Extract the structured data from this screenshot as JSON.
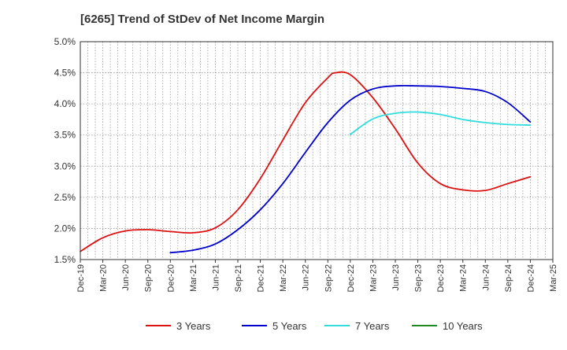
{
  "chart_data": {
    "type": "line",
    "title": "[6265]  Trend of StDev of Net Income Margin",
    "xlabel": "",
    "ylabel": "",
    "ylim": [
      1.5,
      5.0
    ],
    "y_ticks": [
      "1.5%",
      "2.0%",
      "2.5%",
      "3.0%",
      "3.5%",
      "4.0%",
      "4.5%",
      "5.0%"
    ],
    "y_tick_values": [
      1.5,
      2.0,
      2.5,
      3.0,
      3.5,
      4.0,
      4.5,
      5.0
    ],
    "x_ticks": [
      "Dec-19",
      "Mar-20",
      "Jun-20",
      "Sep-20",
      "Dec-20",
      "Mar-21",
      "Jun-21",
      "Sep-21",
      "Dec-21",
      "Mar-22",
      "Jun-22",
      "Sep-22",
      "Dec-22",
      "Mar-23",
      "Jun-23",
      "Sep-23",
      "Dec-23",
      "Mar-24",
      "Jun-24",
      "Sep-24",
      "Dec-24",
      "Mar-25"
    ],
    "grid": true,
    "legend_position": "bottom",
    "series": [
      {
        "name": "3 Years",
        "color": "#dd1111",
        "points": [
          [
            "Dec-19",
            1.63
          ],
          [
            "Mar-20",
            1.85
          ],
          [
            "Jun-20",
            1.96
          ],
          [
            "Sep-20",
            1.98
          ],
          [
            "Dec-20",
            1.95
          ],
          [
            "Mar-21",
            1.93
          ],
          [
            "Jun-21",
            2.01
          ],
          [
            "Sep-21",
            2.3
          ],
          [
            "Dec-21",
            2.8
          ],
          [
            "Mar-22",
            3.42
          ],
          [
            "Jun-22",
            4.02
          ],
          [
            "Sep-22",
            4.42
          ],
          [
            "Oct-22",
            4.5
          ],
          [
            "Dec-22",
            4.47
          ],
          [
            "Mar-23",
            4.1
          ],
          [
            "Jun-23",
            3.6
          ],
          [
            "Sep-23",
            3.05
          ],
          [
            "Dec-23",
            2.72
          ],
          [
            "Mar-24",
            2.62
          ],
          [
            "Jun-24",
            2.61
          ],
          [
            "Sep-24",
            2.72
          ],
          [
            "Dec-24",
            2.83
          ]
        ]
      },
      {
        "name": "5 Years",
        "color": "#0000cc",
        "points": [
          [
            "Dec-20",
            1.61
          ],
          [
            "Mar-21",
            1.65
          ],
          [
            "Jun-21",
            1.75
          ],
          [
            "Sep-21",
            1.98
          ],
          [
            "Dec-21",
            2.3
          ],
          [
            "Mar-22",
            2.72
          ],
          [
            "Jun-22",
            3.22
          ],
          [
            "Sep-22",
            3.7
          ],
          [
            "Dec-22",
            4.06
          ],
          [
            "Mar-23",
            4.24
          ],
          [
            "Jun-23",
            4.29
          ],
          [
            "Sep-23",
            4.29
          ],
          [
            "Dec-23",
            4.28
          ],
          [
            "Mar-24",
            4.25
          ],
          [
            "Jun-24",
            4.2
          ],
          [
            "Sep-24",
            4.02
          ],
          [
            "Dec-24",
            3.71
          ]
        ]
      },
      {
        "name": "7 Years",
        "color": "#33dddd",
        "points": [
          [
            "Dec-22",
            3.51
          ],
          [
            "Mar-23",
            3.76
          ],
          [
            "Jun-23",
            3.85
          ],
          [
            "Sep-23",
            3.87
          ],
          [
            "Dec-23",
            3.83
          ],
          [
            "Mar-24",
            3.75
          ],
          [
            "Jun-24",
            3.7
          ],
          [
            "Sep-24",
            3.67
          ],
          [
            "Dec-24",
            3.66
          ]
        ]
      },
      {
        "name": "10 Years",
        "color": "#228822",
        "points": []
      }
    ]
  }
}
